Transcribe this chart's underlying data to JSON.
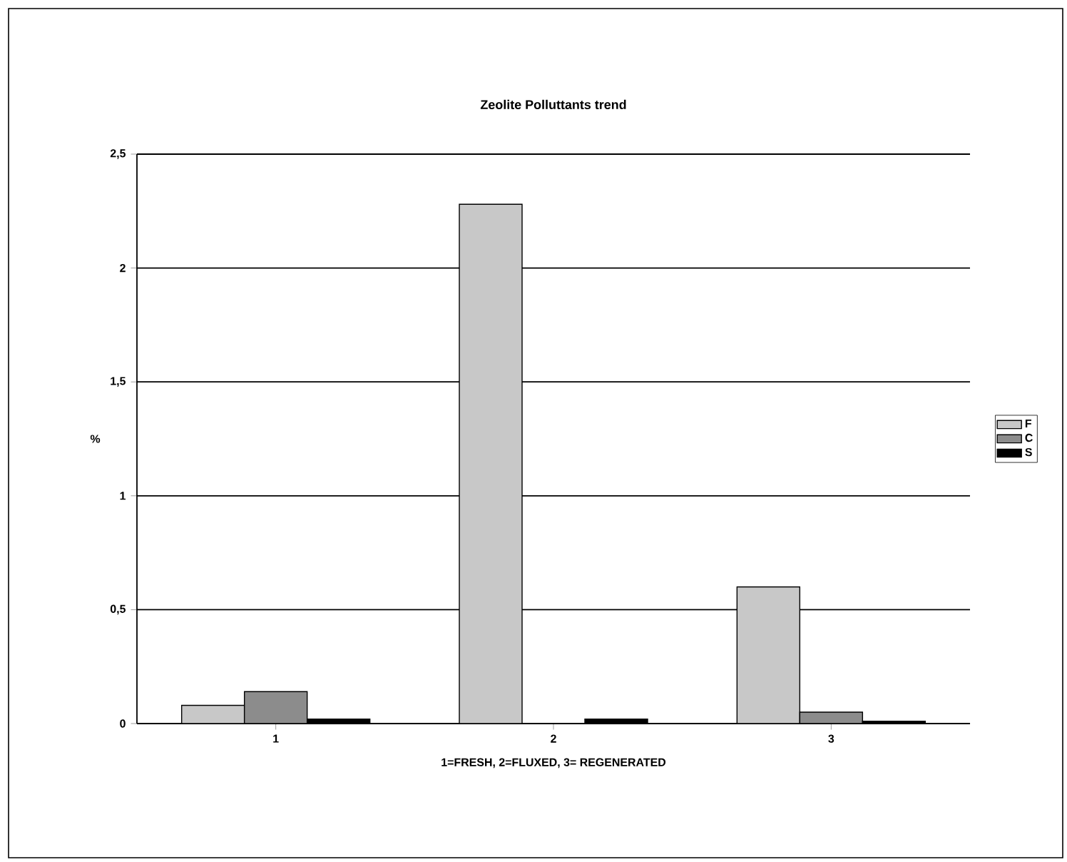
{
  "chart_data": {
    "type": "bar",
    "title": "Zeolite Polluttants  trend",
    "xlabel": "1=FRESH, 2=FLUXED, 3= REGENERATED",
    "ylabel": "%",
    "categories": [
      "1",
      "2",
      "3"
    ],
    "series": [
      {
        "name": "F",
        "color": "#c8c8c8",
        "values": [
          0.08,
          2.28,
          0.6
        ]
      },
      {
        "name": "C",
        "color": "#8c8c8c",
        "values": [
          0.14,
          0,
          0.05
        ]
      },
      {
        "name": "S",
        "color": "#000000",
        "values": [
          0.02,
          0.02,
          0.01
        ]
      }
    ],
    "ylim": [
      0,
      2.5
    ],
    "yticks": [
      {
        "value": 0,
        "label": "0"
      },
      {
        "value": 0.5,
        "label": "0,5"
      },
      {
        "value": 1,
        "label": "1"
      },
      {
        "value": 1.5,
        "label": "1,5"
      },
      {
        "value": 2,
        "label": "2"
      },
      {
        "value": 2.5,
        "label": "2,5"
      }
    ],
    "grid": "y",
    "legend": "right"
  }
}
